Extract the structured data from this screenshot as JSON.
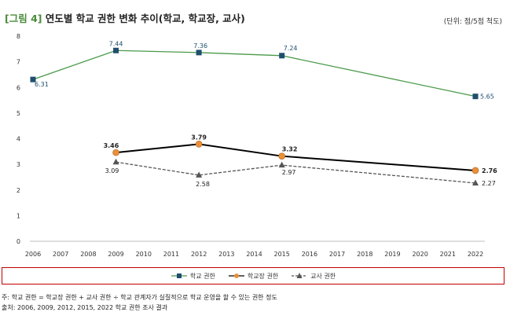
{
  "figure": {
    "number": "[그림 4]",
    "title": "연도별 학교 권한 변화 추이(학교, 학교장, 교사)",
    "unit": "(단위: 점/5점 척도)"
  },
  "chart_data": {
    "type": "line",
    "x": [
      "2006",
      "2007",
      "2008",
      "2009",
      "2010",
      "2011",
      "2012",
      "2013",
      "2014",
      "2015",
      "2016",
      "2017",
      "2018",
      "2019",
      "2020",
      "2021",
      "2022"
    ],
    "ylim": [
      0,
      8
    ],
    "yticks": [
      "0",
      "1",
      "2",
      "3",
      "4",
      "5",
      "6",
      "7",
      "8"
    ],
    "grid": false,
    "legend_position": "bottom",
    "series": [
      {
        "name": "학교 권한",
        "color": "#1f4e6e",
        "line_color": "#4a9a4a",
        "marker": "square",
        "points": [
          {
            "x": "2006",
            "y": 6.31,
            "label": "6.31"
          },
          {
            "x": "2009",
            "y": 7.44,
            "label": "7.44"
          },
          {
            "x": "2012",
            "y": 7.36,
            "label": "7.36"
          },
          {
            "x": "2015",
            "y": 7.24,
            "label": "7.24"
          },
          {
            "x": "2022",
            "y": 5.65,
            "label": "5.65"
          }
        ]
      },
      {
        "name": "학교장 권한",
        "color": "#e8913a",
        "line_color": "#000000",
        "marker": "circle",
        "points": [
          {
            "x": "2009",
            "y": 3.46,
            "label": "3.46"
          },
          {
            "x": "2012",
            "y": 3.79,
            "label": "3.79"
          },
          {
            "x": "2015",
            "y": 3.32,
            "label": "3.32"
          },
          {
            "x": "2022",
            "y": 2.76,
            "label": "2.76"
          }
        ]
      },
      {
        "name": "교사 권한",
        "color": "#555555",
        "line_color": "#555555",
        "marker": "triangle",
        "dashed": true,
        "points": [
          {
            "x": "2009",
            "y": 3.09,
            "label": "3.09"
          },
          {
            "x": "2012",
            "y": 2.58,
            "label": "2.58"
          },
          {
            "x": "2015",
            "y": 2.97,
            "label": "2.97"
          },
          {
            "x": "2022",
            "y": 2.27,
            "label": "2.27"
          }
        ]
      }
    ]
  },
  "notes": [
    "주: 학교 권한 = 학교장 권한 + 교사 권한 ÷ 학교 관계자가 실질적으로 학교 운영을 할 수 있는 권한 정도",
    "출처: 2006, 2009, 2012, 2015, 2022 학교 권한 조사 결과"
  ]
}
